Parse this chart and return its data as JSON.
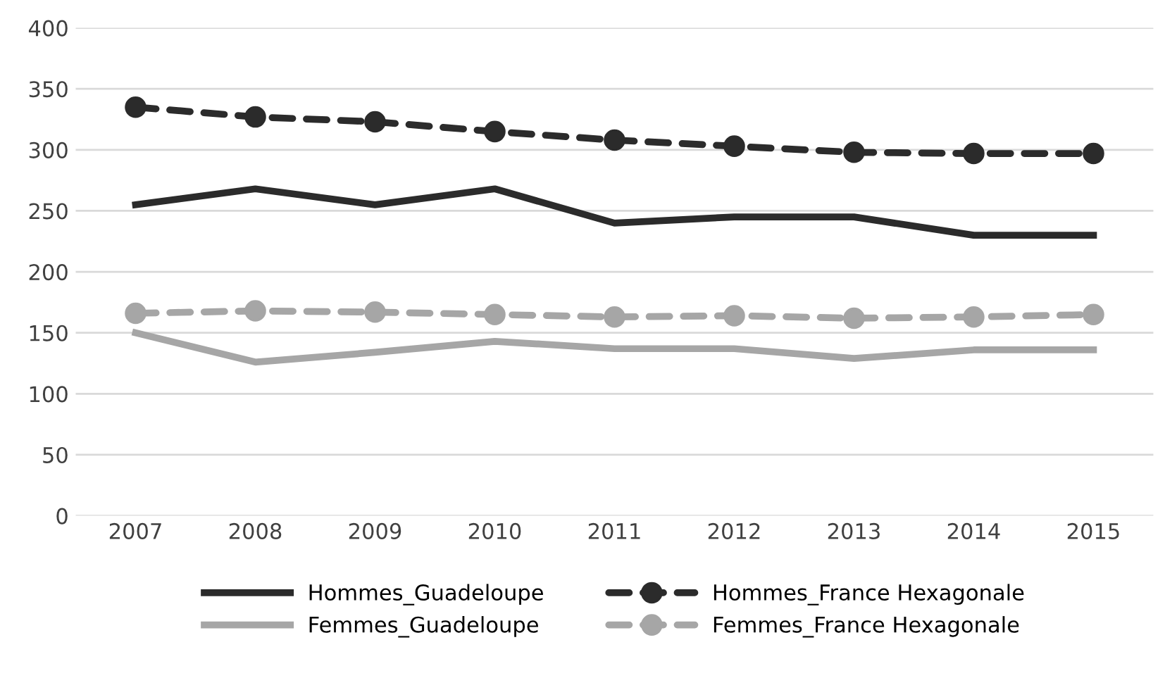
{
  "chart_data": {
    "type": "line",
    "categories": [
      "2007",
      "2008",
      "2009",
      "2010",
      "2011",
      "2012",
      "2013",
      "2014",
      "2015"
    ],
    "series": [
      {
        "name": "Hommes_Guadeloupe",
        "color": "#2b2b2b",
        "marker": "none",
        "line_style": "solid",
        "values": [
          255,
          268,
          255,
          268,
          240,
          245,
          245,
          230,
          230
        ]
      },
      {
        "name": "Femmes_Guadeloupe",
        "color": "#a6a6a6",
        "marker": "none",
        "line_style": "solid",
        "values": [
          150,
          126,
          134,
          143,
          137,
          137,
          129,
          136,
          136
        ]
      },
      {
        "name": "Hommes_France Hexagonale",
        "color": "#2b2b2b",
        "marker": "circle",
        "line_style": "dashed",
        "values": [
          335,
          327,
          323,
          315,
          308,
          303,
          298,
          297,
          297
        ]
      },
      {
        "name": "Femmes_France Hexagonale",
        "color": "#a6a6a6",
        "marker": "circle",
        "line_style": "dashed",
        "values": [
          166,
          168,
          167,
          165,
          163,
          164,
          162,
          163,
          165
        ]
      }
    ],
    "ylim": [
      0,
      400
    ],
    "yticks": [
      0,
      50,
      100,
      150,
      200,
      250,
      300,
      350,
      400
    ],
    "grid": "y",
    "legend": "bottom"
  }
}
